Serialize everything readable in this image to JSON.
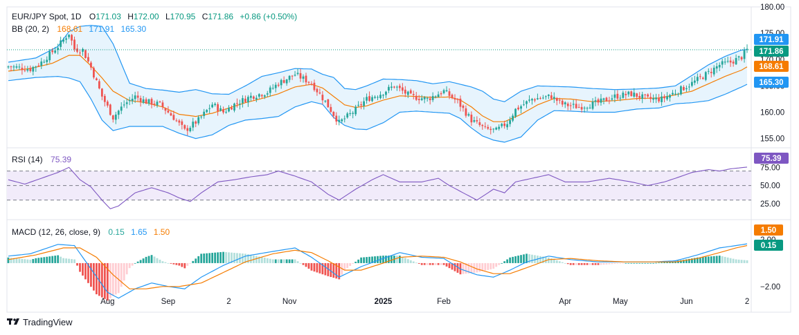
{
  "colors": {
    "up": "#26a69a",
    "down": "#ef5350",
    "bb_basis": "#f57c00",
    "bb_band": "#2196f3",
    "bb_fill": "#e3f2fd",
    "rsi_line": "#7e57c2",
    "rsi_fill": "#f1ebfa",
    "macd_line": "#2196f3",
    "signal_line": "#f57c00",
    "last_price": "#089981"
  },
  "legend": {
    "symbol": "EUR/JPY Spot, 1D",
    "o_label": "O",
    "o_value": "171.03",
    "h_label": "H",
    "h_value": "172.00",
    "l_label": "L",
    "l_value": "170.95",
    "c_label": "C",
    "c_value": "171.86",
    "change": "+0.86 (+0.50%)",
    "bb_name": "BB (20, 2)",
    "bb_basis": "168.61",
    "bb_upper": "171.91",
    "bb_lower": "165.30",
    "rsi_name": "RSI (14)",
    "rsi_value": "75.39",
    "macd_name": "MACD (12, 26, close, 9)",
    "macd_hist": "0.15",
    "macd_line": "1.65",
    "macd_signal": "1.50"
  },
  "badges": {
    "bb_upper": "171.91",
    "last_price": "171.86",
    "bb_basis": "168.61",
    "bb_lower": "165.30",
    "rsi": "75.39",
    "macd_signal": "1.50",
    "macd_hist": "0.15"
  },
  "brand": "TradingView",
  "chart_data": {
    "type": "candlestick",
    "price_axis": {
      "ticks": [
        "180.00",
        "175.00",
        "170.00",
        "165.00",
        "160.00",
        "155.00"
      ],
      "range": [
        153.5,
        180.0
      ]
    },
    "rsi_axis": {
      "ticks": [
        "75.00",
        "50.00",
        "25.00"
      ],
      "levels": [
        70,
        50,
        30
      ],
      "range": [
        5,
        100
      ]
    },
    "macd_axis": {
      "ticks": [
        "2.00",
        "0.00",
        "-2.00"
      ],
      "range": [
        -4.2,
        3.6
      ]
    },
    "x_labels": [
      {
        "label": "Aug",
        "bold": false
      },
      {
        "label": "Sep",
        "bold": false
      },
      {
        "label": "2",
        "bold": false
      },
      {
        "label": "Nov",
        "bold": false
      },
      {
        "label": "2025",
        "bold": true
      },
      {
        "label": "Feb",
        "bold": false
      },
      {
        "label": "Apr",
        "bold": false
      },
      {
        "label": "May",
        "bold": false
      },
      {
        "label": "Jun",
        "bold": false
      },
      {
        "label": "2",
        "bold": false
      }
    ],
    "x_label_bars": [
      36,
      58,
      80,
      102,
      136,
      158,
      202,
      222,
      246,
      268
    ],
    "price_path": [
      [
        0,
        168.7
      ],
      [
        8,
        168.2
      ],
      [
        12,
        169.5
      ],
      [
        18,
        172.5
      ],
      [
        22,
        175.0
      ],
      [
        24,
        172.0
      ],
      [
        27,
        171.8
      ],
      [
        30,
        168.5
      ],
      [
        34,
        163.0
      ],
      [
        38,
        159.0
      ],
      [
        42,
        161.5
      ],
      [
        46,
        163.0
      ],
      [
        50,
        162.0
      ],
      [
        55,
        161.5
      ],
      [
        60,
        159.0
      ],
      [
        64,
        156.5
      ],
      [
        69,
        158.5
      ],
      [
        74,
        161.5
      ],
      [
        78,
        160.0
      ],
      [
        82,
        161.5
      ],
      [
        88,
        163.0
      ],
      [
        94,
        163.8
      ],
      [
        98,
        165.5
      ],
      [
        104,
        167.2
      ],
      [
        110,
        165.5
      ],
      [
        115,
        162.0
      ],
      [
        120,
        158.0
      ],
      [
        125,
        160.0
      ],
      [
        130,
        162.5
      ],
      [
        135,
        163.5
      ],
      [
        140,
        165.0
      ],
      [
        146,
        163.0
      ],
      [
        152,
        162.5
      ],
      [
        158,
        164.0
      ],
      [
        163,
        162.0
      ],
      [
        168,
        158.5
      ],
      [
        173,
        156.8
      ],
      [
        177,
        156.5
      ],
      [
        181,
        158.0
      ],
      [
        184,
        160.5
      ],
      [
        190,
        162.5
      ],
      [
        197,
        163.0
      ],
      [
        201,
        161.5
      ],
      [
        207,
        161.0
      ],
      [
        214,
        161.8
      ],
      [
        220,
        163.0
      ],
      [
        226,
        163.5
      ],
      [
        232,
        162.5
      ],
      [
        237,
        162.5
      ],
      [
        242,
        163.8
      ],
      [
        248,
        165.5
      ],
      [
        254,
        167.5
      ],
      [
        258,
        169.0
      ],
      [
        262,
        169.5
      ],
      [
        266,
        170.5
      ],
      [
        268,
        171.86
      ]
    ],
    "bb_basis_path": [
      [
        0,
        167.8
      ],
      [
        8,
        168.3
      ],
      [
        16,
        169.3
      ],
      [
        22,
        170.8
      ],
      [
        26,
        170.8
      ],
      [
        30,
        168.8
      ],
      [
        34,
        166.5
      ],
      [
        38,
        164.0
      ],
      [
        44,
        162.2
      ],
      [
        50,
        161.8
      ],
      [
        56,
        161.0
      ],
      [
        62,
        159.6
      ],
      [
        68,
        159.2
      ],
      [
        74,
        159.8
      ],
      [
        80,
        160.8
      ],
      [
        86,
        161.8
      ],
      [
        92,
        162.6
      ],
      [
        98,
        163.5
      ],
      [
        104,
        164.8
      ],
      [
        110,
        165.3
      ],
      [
        114,
        164.6
      ],
      [
        118,
        163.0
      ],
      [
        122,
        161.4
      ],
      [
        126,
        160.9
      ],
      [
        130,
        161.2
      ],
      [
        136,
        162.3
      ],
      [
        142,
        163.1
      ],
      [
        148,
        163.0
      ],
      [
        154,
        162.8
      ],
      [
        160,
        162.9
      ],
      [
        164,
        162.3
      ],
      [
        168,
        161.0
      ],
      [
        172,
        159.3
      ],
      [
        176,
        158.2
      ],
      [
        180,
        158.2
      ],
      [
        186,
        159.6
      ],
      [
        192,
        161.4
      ],
      [
        198,
        162.6
      ],
      [
        204,
        162.5
      ],
      [
        212,
        162.0
      ],
      [
        220,
        162.2
      ],
      [
        228,
        162.6
      ],
      [
        236,
        162.7
      ],
      [
        242,
        163.3
      ],
      [
        248,
        164.0
      ],
      [
        254,
        165.4
      ],
      [
        260,
        166.8
      ],
      [
        266,
        168.0
      ],
      [
        268,
        168.61
      ]
    ],
    "bb_upper_path": [
      [
        0,
        169.5
      ],
      [
        10,
        170.3
      ],
      [
        18,
        172.5
      ],
      [
        22,
        175.3
      ],
      [
        26,
        176.3
      ],
      [
        30,
        176.5
      ],
      [
        34,
        176.3
      ],
      [
        38,
        173.0
      ],
      [
        44,
        165.5
      ],
      [
        50,
        164.5
      ],
      [
        56,
        164.2
      ],
      [
        62,
        163.8
      ],
      [
        68,
        164.3
      ],
      [
        74,
        163.5
      ],
      [
        80,
        163.4
      ],
      [
        86,
        165.0
      ],
      [
        92,
        166.8
      ],
      [
        98,
        167.5
      ],
      [
        104,
        168.3
      ],
      [
        110,
        168.2
      ],
      [
        114,
        167.2
      ],
      [
        118,
        166.6
      ],
      [
        122,
        164.5
      ],
      [
        126,
        164.3
      ],
      [
        130,
        165.0
      ],
      [
        136,
        166.3
      ],
      [
        142,
        166.2
      ],
      [
        148,
        166.0
      ],
      [
        154,
        165.4
      ],
      [
        160,
        165.8
      ],
      [
        164,
        165.3
      ],
      [
        168,
        164.8
      ],
      [
        172,
        164.0
      ],
      [
        176,
        162.5
      ],
      [
        180,
        162.0
      ],
      [
        186,
        164.0
      ],
      [
        192,
        165.0
      ],
      [
        198,
        164.9
      ],
      [
        204,
        164.8
      ],
      [
        212,
        164.5
      ],
      [
        220,
        164.3
      ],
      [
        228,
        164.4
      ],
      [
        236,
        164.6
      ],
      [
        242,
        165.0
      ],
      [
        248,
        167.0
      ],
      [
        254,
        169.0
      ],
      [
        260,
        170.6
      ],
      [
        266,
        171.8
      ],
      [
        268,
        171.91
      ]
    ],
    "bb_lower_path": [
      [
        0,
        166.0
      ],
      [
        10,
        166.6
      ],
      [
        18,
        166.8
      ],
      [
        22,
        166.5
      ],
      [
        26,
        165.8
      ],
      [
        30,
        162.5
      ],
      [
        34,
        158.5
      ],
      [
        38,
        156.5
      ],
      [
        44,
        157.3
      ],
      [
        50,
        157.3
      ],
      [
        56,
        157.3
      ],
      [
        62,
        156.0
      ],
      [
        68,
        155.0
      ],
      [
        74,
        155.7
      ],
      [
        80,
        157.5
      ],
      [
        86,
        158.5
      ],
      [
        92,
        158.8
      ],
      [
        98,
        159.2
      ],
      [
        104,
        161.0
      ],
      [
        110,
        162.0
      ],
      [
        114,
        161.5
      ],
      [
        118,
        159.0
      ],
      [
        122,
        157.5
      ],
      [
        126,
        156.8
      ],
      [
        130,
        156.7
      ],
      [
        136,
        158.0
      ],
      [
        142,
        160.0
      ],
      [
        148,
        160.2
      ],
      [
        154,
        160.0
      ],
      [
        160,
        159.8
      ],
      [
        164,
        158.8
      ],
      [
        168,
        157.0
      ],
      [
        172,
        155.5
      ],
      [
        176,
        154.7
      ],
      [
        180,
        154.3
      ],
      [
        186,
        155.3
      ],
      [
        192,
        158.5
      ],
      [
        198,
        160.3
      ],
      [
        204,
        160.2
      ],
      [
        212,
        160.0
      ],
      [
        220,
        160.0
      ],
      [
        228,
        160.6
      ],
      [
        236,
        160.8
      ],
      [
        242,
        161.6
      ],
      [
        248,
        161.8
      ],
      [
        254,
        162.2
      ],
      [
        260,
        163.4
      ],
      [
        266,
        164.8
      ],
      [
        268,
        165.3
      ]
    ],
    "rsi_path": [
      [
        0,
        58
      ],
      [
        6,
        52
      ],
      [
        12,
        60
      ],
      [
        18,
        68
      ],
      [
        22,
        75
      ],
      [
        26,
        58
      ],
      [
        30,
        48
      ],
      [
        34,
        30
      ],
      [
        37,
        18
      ],
      [
        40,
        22
      ],
      [
        46,
        40
      ],
      [
        52,
        47
      ],
      [
        58,
        40
      ],
      [
        62,
        33
      ],
      [
        66,
        28
      ],
      [
        70,
        40
      ],
      [
        76,
        55
      ],
      [
        82,
        58
      ],
      [
        88,
        62
      ],
      [
        94,
        65
      ],
      [
        98,
        70
      ],
      [
        104,
        63
      ],
      [
        110,
        55
      ],
      [
        116,
        38
      ],
      [
        120,
        30
      ],
      [
        126,
        45
      ],
      [
        132,
        58
      ],
      [
        136,
        65
      ],
      [
        142,
        55
      ],
      [
        150,
        55
      ],
      [
        156,
        60
      ],
      [
        160,
        50
      ],
      [
        166,
        38
      ],
      [
        170,
        30
      ],
      [
        176,
        45
      ],
      [
        180,
        40
      ],
      [
        184,
        55
      ],
      [
        190,
        60
      ],
      [
        196,
        65
      ],
      [
        202,
        55
      ],
      [
        210,
        55
      ],
      [
        218,
        60
      ],
      [
        226,
        55
      ],
      [
        232,
        50
      ],
      [
        238,
        55
      ],
      [
        242,
        60
      ],
      [
        248,
        68
      ],
      [
        254,
        72
      ],
      [
        258,
        70
      ],
      [
        262,
        73
      ],
      [
        268,
        75.39
      ]
    ],
    "macd_path": [
      [
        0,
        0.6
      ],
      [
        8,
        0.8
      ],
      [
        18,
        1.6
      ],
      [
        24,
        1.5
      ],
      [
        30,
        -0.5
      ],
      [
        36,
        -2.5
      ],
      [
        40,
        -3.0
      ],
      [
        46,
        -2.2
      ],
      [
        52,
        -1.7
      ],
      [
        58,
        -2.0
      ],
      [
        64,
        -2.2
      ],
      [
        70,
        -1.2
      ],
      [
        78,
        -0.2
      ],
      [
        86,
        0.6
      ],
      [
        96,
        1.0
      ],
      [
        104,
        1.3
      ],
      [
        110,
        0.5
      ],
      [
        116,
        -0.5
      ],
      [
        120,
        -1.2
      ],
      [
        128,
        -0.3
      ],
      [
        136,
        0.4
      ],
      [
        142,
        0.9
      ],
      [
        150,
        0.5
      ],
      [
        158,
        0.4
      ],
      [
        164,
        -0.5
      ],
      [
        170,
        -1.0
      ],
      [
        176,
        -1.2
      ],
      [
        182,
        -0.6
      ],
      [
        188,
        0.1
      ],
      [
        196,
        0.6
      ],
      [
        204,
        0.3
      ],
      [
        214,
        0.1
      ],
      [
        224,
        0.1
      ],
      [
        234,
        0.1
      ],
      [
        242,
        0.2
      ],
      [
        250,
        0.7
      ],
      [
        258,
        1.3
      ],
      [
        264,
        1.5
      ],
      [
        268,
        1.65
      ]
    ],
    "signal_path": [
      [
        0,
        0.3
      ],
      [
        10,
        0.7
      ],
      [
        20,
        1.3
      ],
      [
        26,
        1.3
      ],
      [
        32,
        0.5
      ],
      [
        38,
        -1.0
      ],
      [
        44,
        -2.2
      ],
      [
        50,
        -2.2
      ],
      [
        56,
        -2.0
      ],
      [
        62,
        -2.0
      ],
      [
        70,
        -1.7
      ],
      [
        78,
        -0.8
      ],
      [
        86,
        0.1
      ],
      [
        96,
        0.8
      ],
      [
        104,
        1.1
      ],
      [
        110,
        0.9
      ],
      [
        116,
        0.2
      ],
      [
        122,
        -0.6
      ],
      [
        128,
        -0.6
      ],
      [
        136,
        0.0
      ],
      [
        142,
        0.5
      ],
      [
        150,
        0.6
      ],
      [
        158,
        0.5
      ],
      [
        164,
        0.1
      ],
      [
        170,
        -0.5
      ],
      [
        176,
        -0.9
      ],
      [
        182,
        -0.9
      ],
      [
        188,
        -0.4
      ],
      [
        196,
        0.3
      ],
      [
        204,
        0.4
      ],
      [
        214,
        0.2
      ],
      [
        224,
        0.1
      ],
      [
        234,
        0.1
      ],
      [
        242,
        0.1
      ],
      [
        250,
        0.4
      ],
      [
        258,
        0.9
      ],
      [
        264,
        1.3
      ],
      [
        268,
        1.5
      ]
    ],
    "last_values": {
      "price": 171.86,
      "bb_upper": 171.91,
      "bb_basis": 168.61,
      "bb_lower": 165.3,
      "rsi": 75.39,
      "macd": 1.65,
      "signal": 1.5,
      "hist": 0.15
    }
  }
}
